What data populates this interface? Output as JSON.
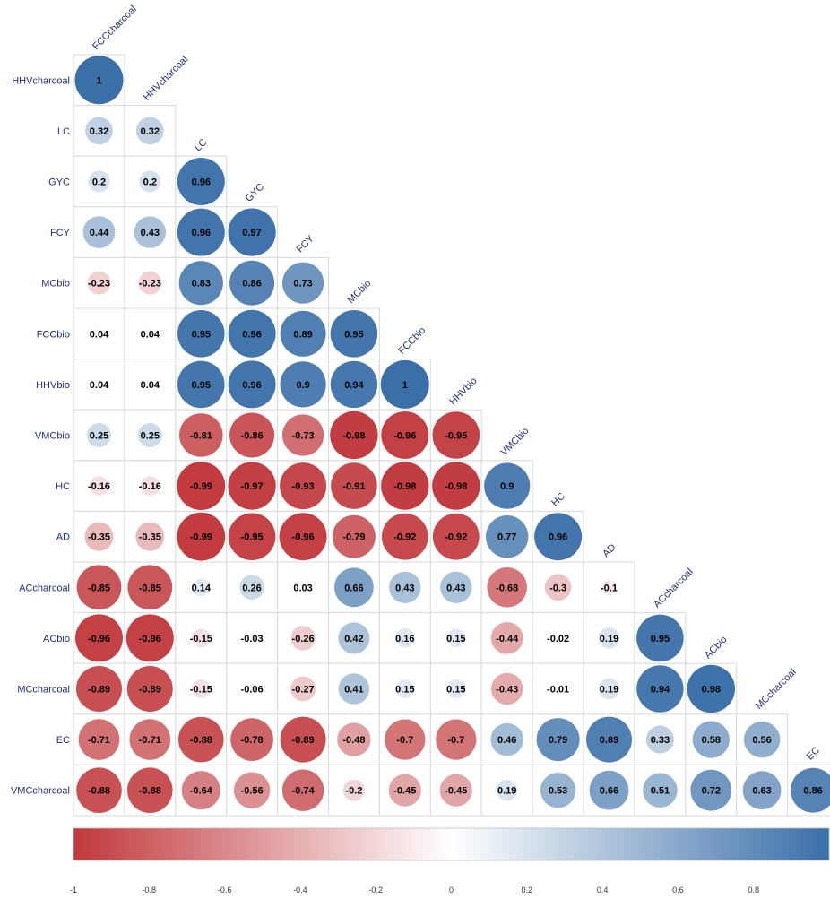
{
  "chart_data": {
    "type": "heatmap",
    "subtype": "correlation-matrix-lower-triangle-circles",
    "variables": [
      "FCCcharcoal",
      "HHVcharcoal",
      "LC",
      "GYC",
      "FCY",
      "MCbio",
      "FCCbio",
      "HHVbio",
      "VMCbio",
      "HC",
      "AD",
      "ACcharcoal",
      "ACbio",
      "MCcharcoal",
      "EC"
    ],
    "row_labels": [
      "HHVcharcoal",
      "LC",
      "GYC",
      "FCY",
      "MCbio",
      "FCCbio",
      "HHVbio",
      "VMCbio",
      "HC",
      "AD",
      "ACcharcoal",
      "ACbio",
      "MCcharcoal",
      "EC",
      "VMCcharcoal"
    ],
    "col_labels": [
      "FCCcharcoal",
      "HHVcharcoal",
      "LC",
      "GYC",
      "FCY",
      "MCbio",
      "FCCbio",
      "HHVbio",
      "VMCbio",
      "HC",
      "AD",
      "ACcharcoal",
      "ACbio",
      "MCcharcoal",
      "EC"
    ],
    "values": [
      [
        1
      ],
      [
        0.32,
        0.32
      ],
      [
        0.2,
        0.2,
        0.96
      ],
      [
        0.44,
        0.43,
        0.96,
        0.97
      ],
      [
        -0.23,
        -0.23,
        0.83,
        0.86,
        0.73
      ],
      [
        0.04,
        0.04,
        0.95,
        0.96,
        0.89,
        0.95
      ],
      [
        0.04,
        0.04,
        0.95,
        0.96,
        0.9,
        0.94,
        1
      ],
      [
        0.25,
        0.25,
        -0.81,
        -0.86,
        -0.73,
        -0.98,
        -0.96,
        -0.95
      ],
      [
        -0.16,
        -0.16,
        -0.99,
        -0.97,
        -0.93,
        -0.91,
        -0.98,
        -0.98,
        0.9
      ],
      [
        -0.35,
        -0.35,
        -0.99,
        -0.95,
        -0.96,
        -0.79,
        -0.92,
        -0.92,
        0.77,
        0.96
      ],
      [
        -0.85,
        -0.85,
        0.14,
        0.26,
        0.03,
        0.66,
        0.43,
        0.43,
        -0.68,
        -0.3,
        -0.1
      ],
      [
        -0.96,
        -0.96,
        -0.15,
        -0.03,
        -0.26,
        0.42,
        0.16,
        0.15,
        -0.44,
        -0.02,
        0.19,
        0.95
      ],
      [
        -0.89,
        -0.89,
        -0.15,
        -0.06,
        -0.27,
        0.41,
        0.15,
        0.15,
        -0.43,
        -0.01,
        0.19,
        0.94,
        0.98
      ],
      [
        -0.71,
        -0.71,
        -0.88,
        -0.78,
        -0.89,
        -0.48,
        -0.7,
        -0.7,
        0.46,
        0.79,
        0.89,
        0.33,
        0.58,
        0.56
      ],
      [
        -0.88,
        -0.88,
        -0.64,
        -0.56,
        -0.74,
        -0.2,
        -0.45,
        -0.45,
        0.19,
        0.53,
        0.66,
        0.51,
        0.72,
        0.63,
        0.86
      ]
    ],
    "value_labels": [
      [
        "1"
      ],
      [
        "0.32",
        "0.32"
      ],
      [
        "0.2",
        "0.2",
        "0.96"
      ],
      [
        "0.44",
        "0.43",
        "0.96",
        "0.97"
      ],
      [
        "-0.23",
        "-0.23",
        "0.83",
        "0.86",
        "0.73"
      ],
      [
        "0.04",
        "0.04",
        "0.95",
        "0.96",
        "0.89",
        "0.95"
      ],
      [
        "0.04",
        "0.04",
        "0.95",
        "0.96",
        "0.9",
        "0.94",
        "1"
      ],
      [
        "0.25",
        "0.25",
        "-0.81",
        "-0.86",
        "-0.73",
        "-0.98",
        "-0.96",
        "-0.95"
      ],
      [
        "-0.16",
        "-0.16",
        "-0.99",
        "-0.97",
        "-0.93",
        "-0.91",
        "-0.98",
        "-0.98",
        "0.9"
      ],
      [
        "-0.35",
        "-0.35",
        "-0.99",
        "-0.95",
        "-0.96",
        "-0.79",
        "-0.92",
        "-0.92",
        "0.77",
        "0.96"
      ],
      [
        "-0.85",
        "-0.85",
        "0.14",
        "0.26",
        "0.03",
        "0.66",
        "0.43",
        "0.43",
        "-0.68",
        "-0.3",
        "-0.1"
      ],
      [
        "-0.96",
        "-0.96",
        "-0.15",
        "-0.03",
        "-0.26",
        "0.42",
        "0.16",
        "0.15",
        "-0.44",
        "-0.02",
        "0.19",
        "0.95"
      ],
      [
        "-0.89",
        "-0.89",
        "-0.15",
        "-0.06",
        "-0.27",
        "0.41",
        "0.15",
        "0.15",
        "-0.43",
        "-0.01",
        "0.19",
        "0.94",
        "0.98"
      ],
      [
        "-0.71",
        "-0.71",
        "-0.88",
        "-0.78",
        "-0.89",
        "-0.48",
        "-0.7",
        "-0.7",
        "0.46",
        "0.79",
        "0.89",
        "0.33",
        "0.58",
        "0.56"
      ],
      [
        "-0.88",
        "-0.88",
        "-0.64",
        "-0.56",
        "-0.74",
        "-0.2",
        "-0.45",
        "-0.45",
        "0.19",
        "0.53",
        "0.66",
        "0.51",
        "0.72",
        "0.63",
        "0.86"
      ]
    ],
    "colorbar": {
      "range": [
        -1,
        1
      ],
      "ticks": [
        "-1",
        "-0.8",
        "-0.6",
        "-0.4",
        "-0.2",
        "0",
        "0.2",
        "0.4",
        "0.6",
        "0.8"
      ],
      "tick_values": [
        -1,
        -0.8,
        -0.6,
        -0.4,
        -0.2,
        0,
        0.2,
        0.4,
        0.6,
        0.8
      ],
      "colors": {
        "negative": "#C0393D",
        "neutral": "#FFFFFF",
        "positive": "#3A6FA8"
      }
    },
    "label_color": "#1F2E7A",
    "value_text_color": "#000000",
    "grid": true
  }
}
